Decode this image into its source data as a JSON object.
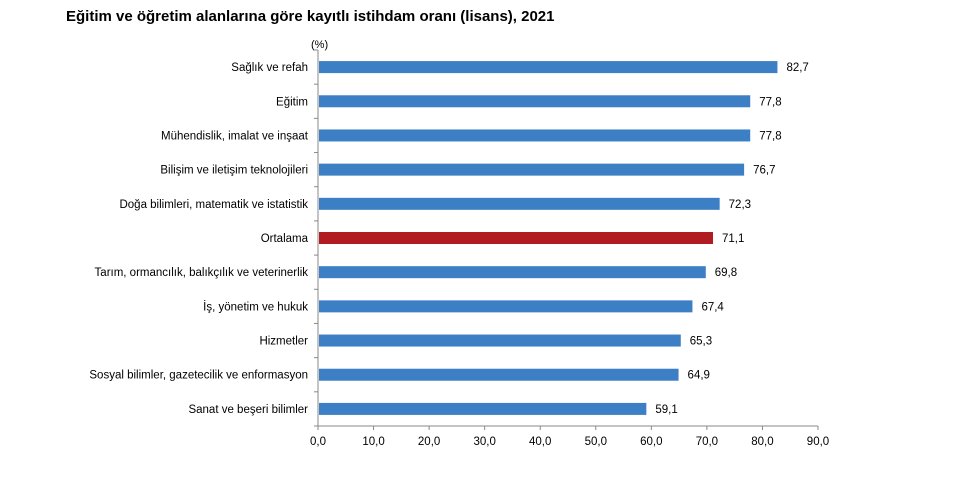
{
  "title": "Eğitim ve öğretim alanlarına göre kayıtlı istihdam oranı (lisans), 2021",
  "chart_data": {
    "type": "bar",
    "orientation": "horizontal",
    "title": "Eğitim ve öğretim alanlarına göre kayıtlı istihdam oranı (lisans), 2021",
    "unit": "(%)",
    "categories": [
      "Sağlık ve refah",
      "Eğitim",
      "Mühendislik, imalat ve inşaat",
      "Bilişim ve iletişim teknolojileri",
      "Doğa bilimleri, matematik ve istatistik",
      "Ortalama",
      "Tarım, ormancılık, balıkçılık ve veterinerlik",
      "İş, yönetim ve hukuk",
      "Hizmetler",
      "Sosyal bilimler, gazetecilik ve enformasyon",
      "Sanat ve beşeri bilimler"
    ],
    "values": [
      82.7,
      77.8,
      77.8,
      76.7,
      72.3,
      71.1,
      69.8,
      67.4,
      65.3,
      64.9,
      59.1
    ],
    "value_labels": [
      "82,7",
      "77,8",
      "77,8",
      "76,7",
      "72,3",
      "71,1",
      "69,8",
      "67,4",
      "65,3",
      "64,9",
      "59,1"
    ],
    "highlight_index": 5,
    "colors": {
      "bar": "#3d7fc4",
      "highlight": "#b01c22",
      "axis": "#888888"
    },
    "xlim": [
      0,
      90
    ],
    "xticks": [
      0,
      10,
      20,
      30,
      40,
      50,
      60,
      70,
      80,
      90
    ],
    "xtick_labels": [
      "0,0",
      "10,0",
      "20,0",
      "30,0",
      "40,0",
      "50,0",
      "60,0",
      "70,0",
      "80,0",
      "90,0"
    ],
    "grid": false,
    "legend": "none"
  }
}
